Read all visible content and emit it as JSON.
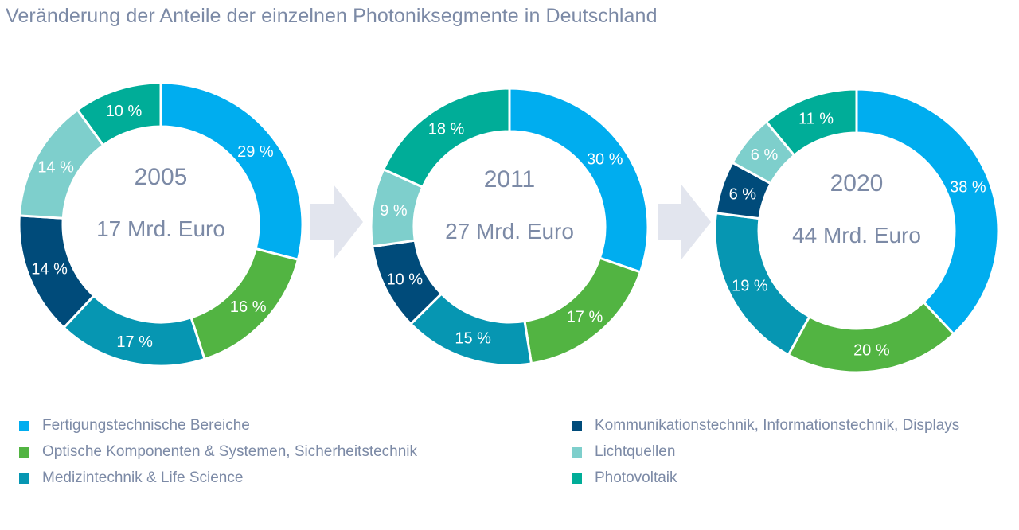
{
  "title": "Veränderung der Anteile der einzelnen Photoniksegmente in Deutschland",
  "colors": {
    "arrow": "#e2e5ee",
    "center_text": "#7c8aa6"
  },
  "chart_data": {
    "type": "pie",
    "variant": "donut",
    "segments": [
      {
        "name": "Fertigungstechnische Bereiche",
        "color": "#00adef"
      },
      {
        "name": "Optische Komponenten & Systemen, Sicherheitstechnik",
        "color": "#52b442"
      },
      {
        "name": "Medizintechnik & Life Science",
        "color": "#0696b2"
      },
      {
        "name": "Kommunikationstechnik, Informationstechnik, Displays",
        "color": "#004b7a"
      },
      {
        "name": "Lichtquellen",
        "color": "#7ecfcc"
      },
      {
        "name": "Photovoltaik",
        "color": "#00ad98"
      }
    ],
    "charts": [
      {
        "year": "2005",
        "total": "17 Mrd. Euro",
        "values": [
          29,
          16,
          17,
          14,
          14,
          10
        ],
        "labels": [
          "29 %",
          "16 %",
          "17 %",
          "14 %",
          "14 %",
          "10 %"
        ]
      },
      {
        "year": "2011",
        "total": "27 Mrd. Euro",
        "values": [
          30,
          17,
          15,
          10,
          9,
          18
        ],
        "labels": [
          "30 %",
          "17 %",
          "15 %",
          "10 %",
          "9 %",
          "18 %"
        ]
      },
      {
        "year": "2020",
        "total": "44 Mrd. Euro",
        "values": [
          38,
          20,
          19,
          6,
          6,
          11
        ],
        "labels": [
          "38 %",
          "20 %",
          "19 %",
          "6 %",
          "6 %",
          "11 %"
        ]
      }
    ],
    "legend_position": "bottom"
  }
}
